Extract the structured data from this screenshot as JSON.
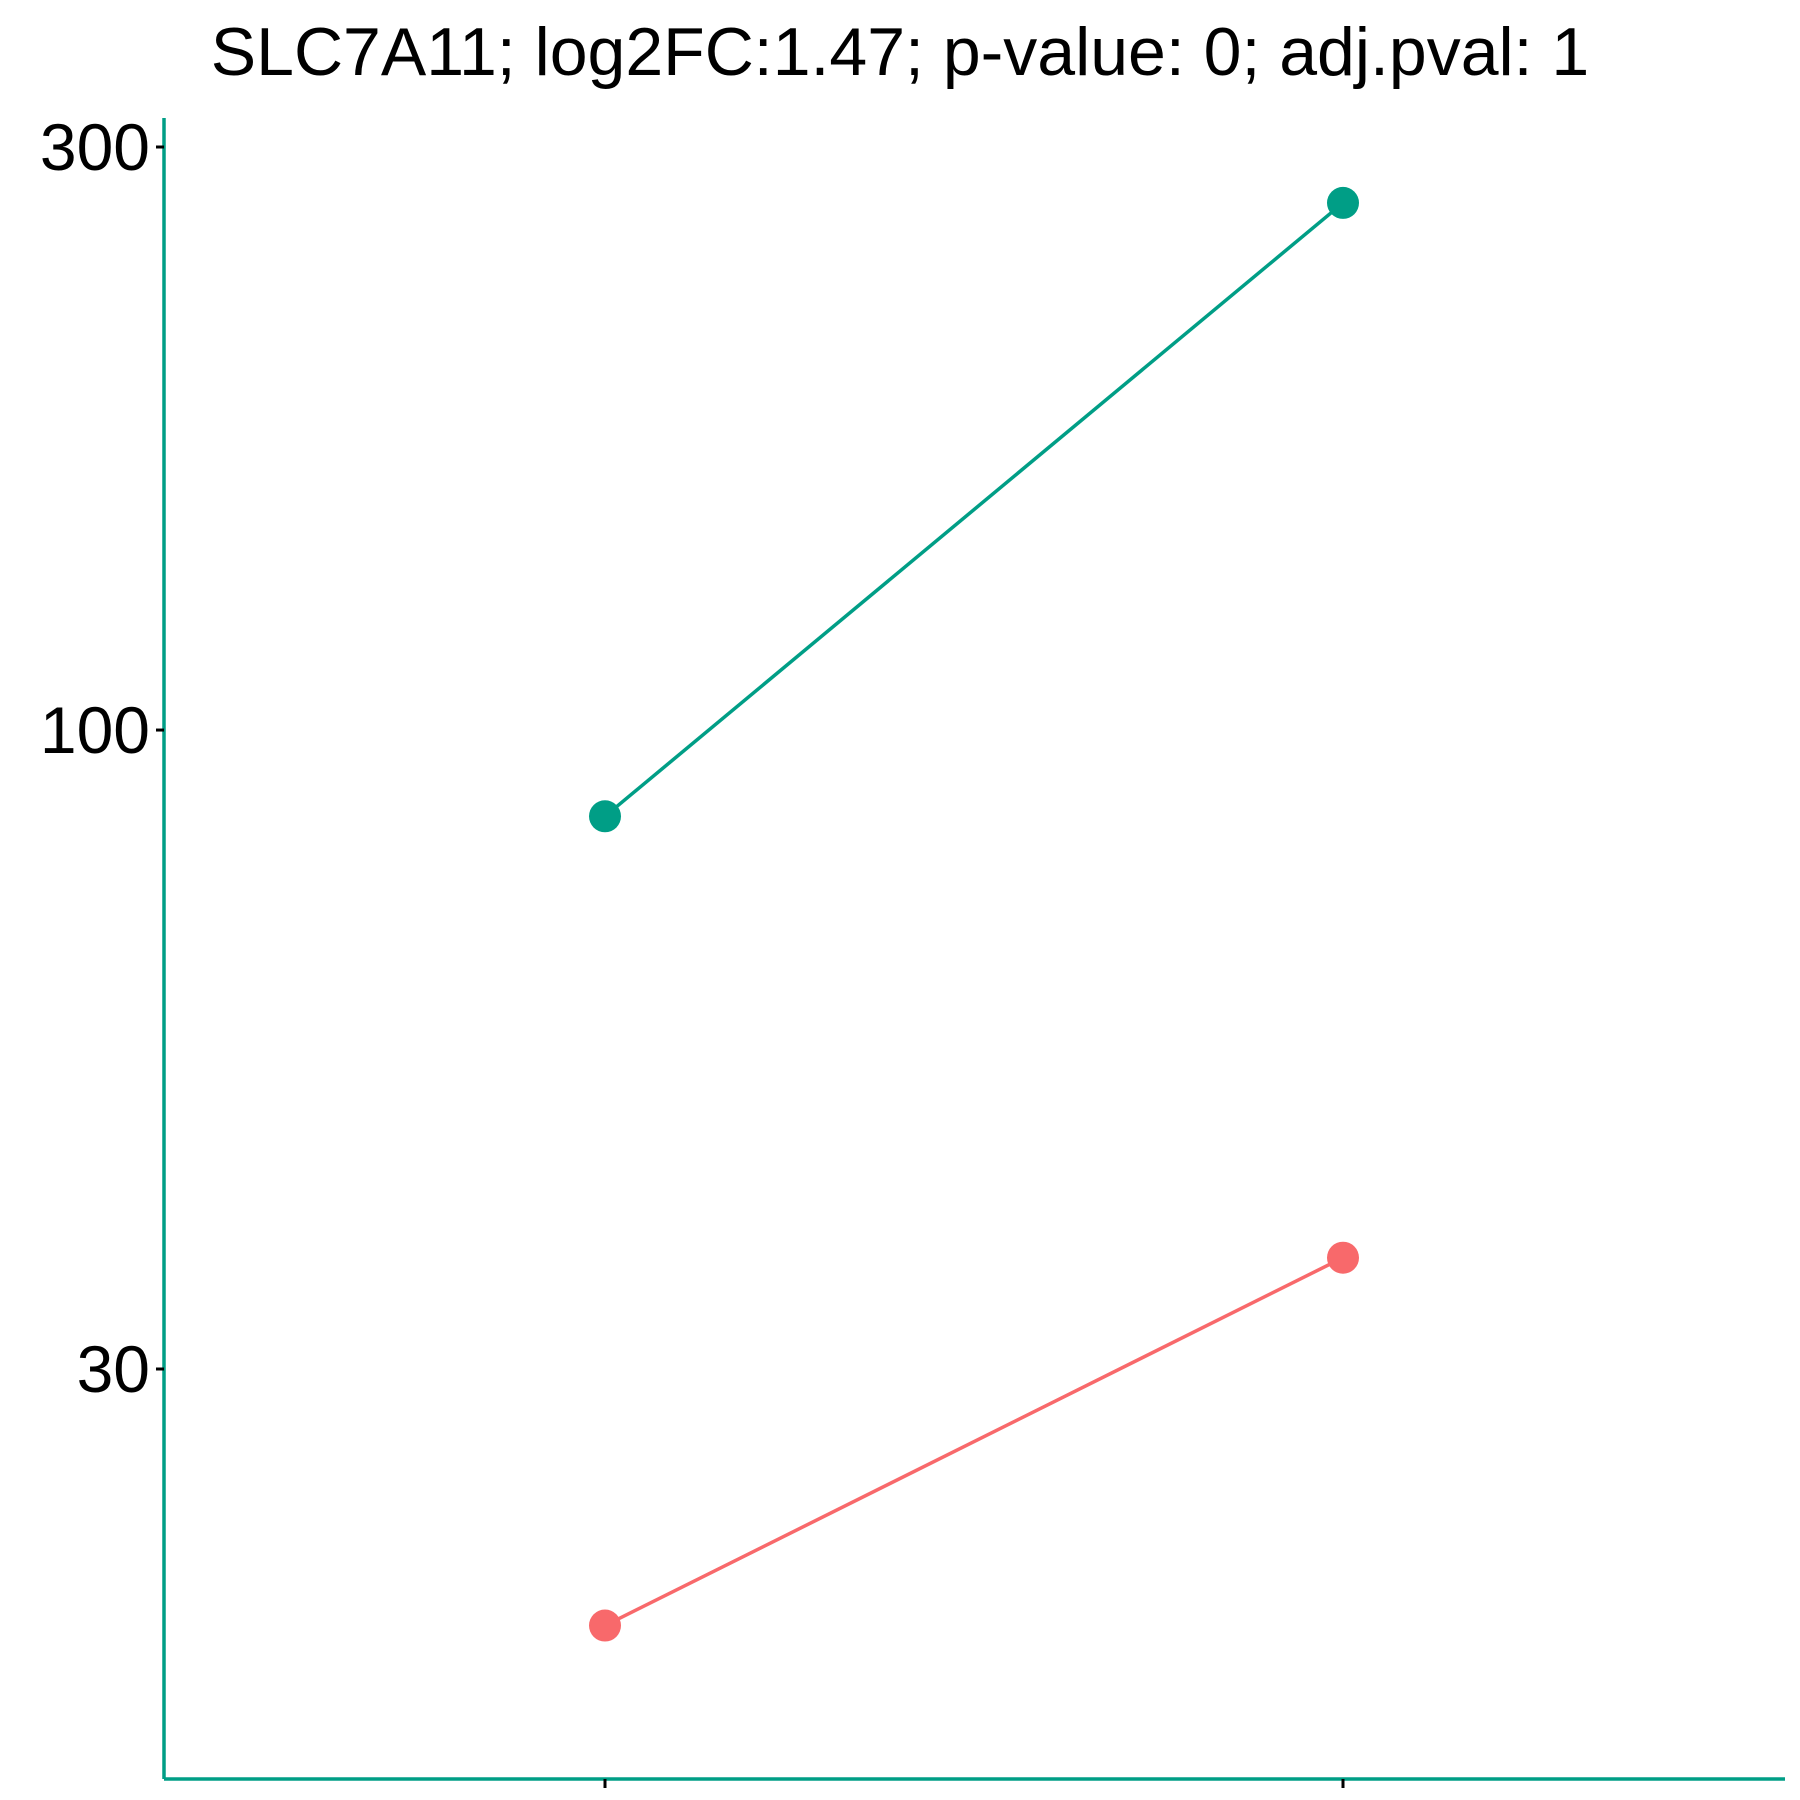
{
  "chart_data": {
    "type": "line",
    "title": "SLC7A11; log2FC:1.47; p-value: 0; adj.pval: 1",
    "xlabel": "",
    "ylabel": "",
    "y_scale": "log",
    "ylim": [
      16,
      315
    ],
    "yticks": [
      300,
      100,
      30
    ],
    "categories": [
      "",
      ""
    ],
    "series": [
      {
        "values": [
          85,
          270
        ],
        "color": "#009E86"
      },
      {
        "values": [
          18.5,
          37
        ],
        "color": "#F8696B"
      }
    ],
    "grid": false,
    "legend": "none"
  },
  "colors": {
    "axis": "#009E86",
    "tick": "#000000",
    "text": "#000000"
  }
}
